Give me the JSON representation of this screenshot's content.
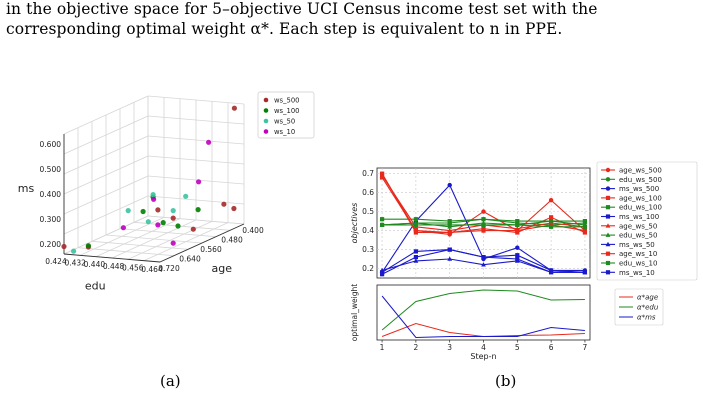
{
  "caption": {
    "line1": "in the objective space for 5–objective UCI Census income test set with the",
    "line2": "corresponding optimal weight α*. Each step is equivalent to n in PPE."
  },
  "subfigure_labels": {
    "a": "(a)",
    "b": "(b)"
  },
  "chart_data": [
    {
      "id": "a",
      "type": "scatter",
      "projection": "3d",
      "legend_position": "top-right",
      "axes": {
        "x": {
          "label": "edu",
          "ticks": [
            "0.424",
            "0.432",
            "0.440",
            "0.448",
            "0.456",
            "0.464"
          ]
        },
        "y": {
          "label": "age",
          "ticks": [
            "0.720",
            "0.640",
            "0.560",
            "0.480",
            "0.400"
          ]
        },
        "z": {
          "label": "ms",
          "ticks": [
            "0.200",
            "0.300",
            "0.400",
            "0.500",
            "0.600"
          ]
        }
      },
      "series": [
        {
          "name": "ws_500",
          "color": "#a52a2a",
          "points": [
            {
              "edu": 0.424,
              "age": 0.72,
              "ms": 0.19
            },
            {
              "edu": 0.432,
              "age": 0.7,
              "ms": 0.185
            },
            {
              "edu": 0.456,
              "age": 0.52,
              "ms": 0.19
            },
            {
              "edu": 0.46,
              "age": 0.44,
              "ms": 0.255
            },
            {
              "edu": 0.46,
              "age": 0.4,
              "ms": 0.62
            },
            {
              "edu": 0.452,
              "age": 0.56,
              "ms": 0.25
            },
            {
              "edu": 0.462,
              "age": 0.42,
              "ms": 0.23
            },
            {
              "edu": 0.45,
              "age": 0.6,
              "ms": 0.3
            }
          ]
        },
        {
          "name": "ws_100",
          "color": "#008000",
          "points": [
            {
              "edu": 0.432,
              "age": 0.7,
              "ms": 0.19
            },
            {
              "edu": 0.448,
              "age": 0.6,
              "ms": 0.35
            },
            {
              "edu": 0.446,
              "age": 0.62,
              "ms": 0.3
            },
            {
              "edu": 0.458,
              "age": 0.52,
              "ms": 0.27
            },
            {
              "edu": 0.454,
              "age": 0.56,
              "ms": 0.22
            },
            {
              "edu": 0.45,
              "age": 0.58,
              "ms": 0.24
            }
          ]
        },
        {
          "name": "ws_50",
          "color": "#3cc3a0",
          "points": [
            {
              "edu": 0.428,
              "age": 0.72,
              "ms": 0.175
            },
            {
              "edu": 0.442,
              "age": 0.64,
              "ms": 0.31
            },
            {
              "edu": 0.448,
              "age": 0.6,
              "ms": 0.36
            },
            {
              "edu": 0.455,
              "age": 0.54,
              "ms": 0.33
            },
            {
              "edu": 0.452,
              "age": 0.56,
              "ms": 0.28
            },
            {
              "edu": 0.446,
              "age": 0.6,
              "ms": 0.25
            }
          ]
        },
        {
          "name": "ws_10",
          "color": "#c000c0",
          "points": [
            {
              "edu": 0.44,
              "age": 0.64,
              "ms": 0.24
            },
            {
              "edu": 0.452,
              "age": 0.56,
              "ms": 0.15
            },
            {
              "edu": 0.458,
              "age": 0.48,
              "ms": 0.52
            },
            {
              "edu": 0.446,
              "age": 0.58,
              "ms": 0.33
            },
            {
              "edu": 0.456,
              "age": 0.5,
              "ms": 0.37
            },
            {
              "edu": 0.45,
              "age": 0.6,
              "ms": 0.24
            }
          ]
        }
      ]
    },
    {
      "id": "b-top",
      "type": "line",
      "ylabel": "objectives",
      "xlabel": "",
      "x": [
        1,
        2,
        3,
        4,
        5,
        6,
        7
      ],
      "ylim": [
        0.15,
        0.73
      ],
      "yticks": [
        0.2,
        0.3,
        0.4,
        0.5,
        0.6,
        0.7
      ],
      "grid": true,
      "legend_position": "right",
      "series": [
        {
          "name": "age_ws_500",
          "color": "#e8291c",
          "marker": "circle",
          "values": [
            0.7,
            0.4,
            0.38,
            0.5,
            0.4,
            0.56,
            0.4
          ]
        },
        {
          "name": "edu_ws_500",
          "color": "#1f8a1f",
          "marker": "circle",
          "values": [
            0.43,
            0.44,
            0.44,
            0.46,
            0.44,
            0.43,
            0.44
          ]
        },
        {
          "name": "ms_ws_500",
          "color": "#1a1acc",
          "marker": "circle",
          "values": [
            0.18,
            0.45,
            0.64,
            0.25,
            0.31,
            0.19,
            0.19
          ]
        },
        {
          "name": "age_ws_100",
          "color": "#e8291c",
          "marker": "square",
          "values": [
            0.7,
            0.39,
            0.39,
            0.41,
            0.39,
            0.47,
            0.39
          ]
        },
        {
          "name": "edu_ws_100",
          "color": "#1f8a1f",
          "marker": "square",
          "values": [
            0.46,
            0.46,
            0.45,
            0.46,
            0.45,
            0.45,
            0.45
          ]
        },
        {
          "name": "ms_ws_100",
          "color": "#1a1acc",
          "marker": "square",
          "values": [
            0.18,
            0.29,
            0.3,
            0.26,
            0.27,
            0.19,
            0.18
          ]
        },
        {
          "name": "age_ws_50",
          "color": "#e8291c",
          "marker": "triangle",
          "values": [
            0.69,
            0.42,
            0.4,
            0.43,
            0.41,
            0.44,
            0.42
          ]
        },
        {
          "name": "edu_ws_50",
          "color": "#1f8a1f",
          "marker": "triangle",
          "values": [
            0.43,
            0.44,
            0.42,
            0.44,
            0.43,
            0.45,
            0.43
          ]
        },
        {
          "name": "ms_ws_50",
          "color": "#1a1acc",
          "marker": "triangle",
          "values": [
            0.19,
            0.24,
            0.25,
            0.22,
            0.24,
            0.18,
            0.18
          ]
        },
        {
          "name": "age_ws_10",
          "color": "#e8291c",
          "marker": "square",
          "values": [
            0.68,
            0.4,
            0.39,
            0.4,
            0.4,
            0.43,
            0.4
          ]
        },
        {
          "name": "edu_ws_10",
          "color": "#1f8a1f",
          "marker": "square",
          "values": [
            0.43,
            0.43,
            0.43,
            0.43,
            0.43,
            0.42,
            0.42
          ]
        },
        {
          "name": "ms_ws_10",
          "color": "#1a1acc",
          "marker": "square",
          "values": [
            0.17,
            0.26,
            0.3,
            0.26,
            0.25,
            0.18,
            0.18
          ]
        }
      ]
    },
    {
      "id": "b-bottom",
      "type": "line",
      "ylabel": "optimal_weight",
      "xlabel": "Step-n",
      "x": [
        1,
        2,
        3,
        4,
        5,
        6,
        7
      ],
      "xticks": [
        "1",
        "2",
        "3",
        "4",
        "5",
        "6",
        "7"
      ],
      "ylim": [
        0,
        1.0
      ],
      "grid": false,
      "legend_position": "right",
      "series": [
        {
          "name": "α*age",
          "color": "#e8291c",
          "values": [
            0.02,
            0.28,
            0.1,
            0.02,
            0.04,
            0.05,
            0.08
          ]
        },
        {
          "name": "α*edu",
          "color": "#1f8a1f",
          "values": [
            0.15,
            0.72,
            0.88,
            0.95,
            0.93,
            0.75,
            0.76
          ]
        },
        {
          "name": "α*ms",
          "color": "#1a1acc",
          "values": [
            0.83,
            0.0,
            0.02,
            0.02,
            0.02,
            0.2,
            0.14
          ]
        }
      ]
    }
  ]
}
